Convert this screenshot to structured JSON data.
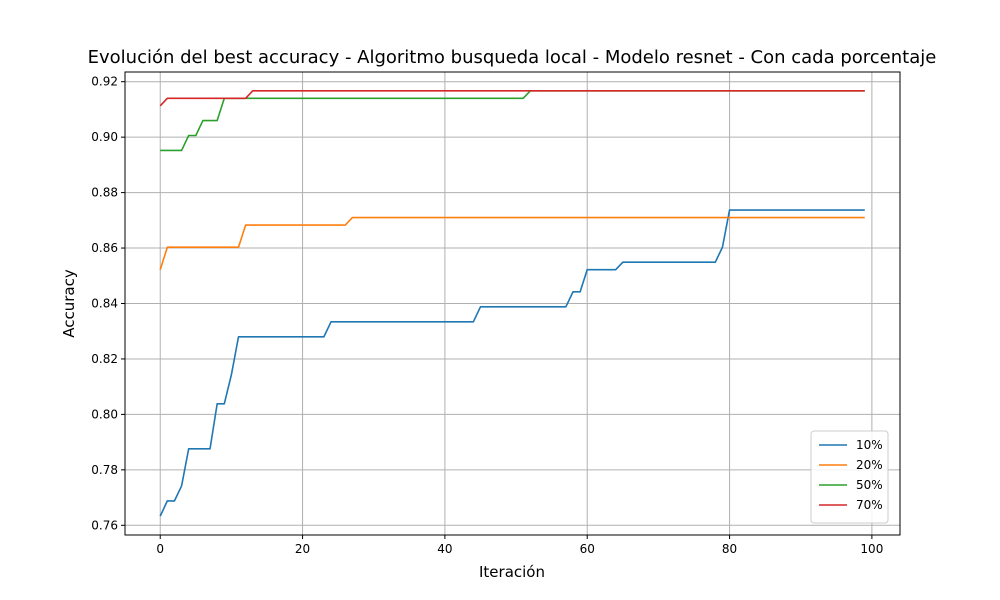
{
  "chart_data": {
    "type": "line",
    "title": "Evolución del best accuracy - Algoritmo busqueda local - Modelo resnet - Con cada porcentaje",
    "xlabel": "Iteración",
    "ylabel": "Accuracy",
    "xlim": [
      -4.95,
      103.95
    ],
    "ylim": [
      0.7565,
      0.9235
    ],
    "xticks": [
      0,
      20,
      40,
      60,
      80,
      100
    ],
    "yticks": [
      0.76,
      0.78,
      0.8,
      0.82,
      0.84,
      0.86,
      0.88,
      0.9,
      0.92
    ],
    "xtick_labels": [
      "0",
      "20",
      "40",
      "60",
      "80",
      "100"
    ],
    "ytick_labels": [
      "0.76",
      "0.78",
      "0.80",
      "0.82",
      "0.84",
      "0.86",
      "0.88",
      "0.90",
      "0.92"
    ],
    "grid": true,
    "legend_position": "lower-right",
    "series": [
      {
        "name": "10%",
        "color": "#1f77b4",
        "points": [
          [
            0,
            0.7633
          ],
          [
            1,
            0.7688
          ],
          [
            2,
            0.7688
          ],
          [
            3,
            0.7742
          ],
          [
            4,
            0.7876
          ],
          [
            5,
            0.7876
          ],
          [
            6,
            0.7876
          ],
          [
            7,
            0.7876
          ],
          [
            8,
            0.8038
          ],
          [
            9,
            0.8038
          ],
          [
            10,
            0.8143
          ],
          [
            11,
            0.828
          ],
          [
            23,
            0.828
          ],
          [
            24,
            0.8334
          ],
          [
            44,
            0.8334
          ],
          [
            45,
            0.8388
          ],
          [
            57,
            0.8388
          ],
          [
            58,
            0.8442
          ],
          [
            59,
            0.8442
          ],
          [
            60,
            0.8522
          ],
          [
            64,
            0.8522
          ],
          [
            65,
            0.8549
          ],
          [
            78,
            0.8549
          ],
          [
            79,
            0.8603
          ],
          [
            80,
            0.8737
          ],
          [
            99,
            0.8737
          ]
        ]
      },
      {
        "name": "20%",
        "color": "#ff7f0e",
        "points": [
          [
            0,
            0.8522
          ],
          [
            1,
            0.8603
          ],
          [
            11,
            0.8603
          ],
          [
            12,
            0.8683
          ],
          [
            26,
            0.8683
          ],
          [
            27,
            0.871
          ],
          [
            99,
            0.871
          ]
        ]
      },
      {
        "name": "50%",
        "color": "#2ca02c",
        "points": [
          [
            0,
            0.8952
          ],
          [
            3,
            0.8952
          ],
          [
            4,
            0.9006
          ],
          [
            5,
            0.9006
          ],
          [
            6,
            0.906
          ],
          [
            8,
            0.906
          ],
          [
            9,
            0.914
          ],
          [
            51,
            0.914
          ],
          [
            52,
            0.9167
          ],
          [
            99,
            0.9167
          ]
        ]
      },
      {
        "name": "70%",
        "color": "#d62728",
        "points": [
          [
            0,
            0.9113
          ],
          [
            1,
            0.914
          ],
          [
            12,
            0.914
          ],
          [
            13,
            0.9167
          ],
          [
            99,
            0.9167
          ]
        ]
      }
    ]
  }
}
